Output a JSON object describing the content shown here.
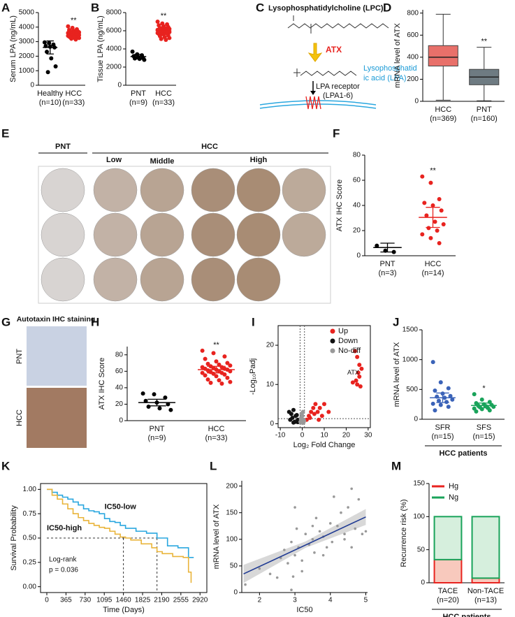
{
  "chart_data": [
    {
      "panel": "A",
      "type": "dot",
      "ylabel": "Serum LPA (ng/mL)",
      "ylim": [
        0,
        5000
      ],
      "yticks": [
        0,
        1000,
        2000,
        3000,
        4000,
        5000
      ],
      "series": [
        {
          "name": "Healthy",
          "note": "(n=10)",
          "color": "#000000",
          "mean": 2600,
          "error": 450,
          "values": [
            2950,
            2900,
            2800,
            2700,
            2650,
            2600,
            2300,
            1850,
            1300,
            900
          ]
        },
        {
          "name": "HCC",
          "note": "(n=33)",
          "color": "#e8231f",
          "mean": 3550,
          "error": 150,
          "significance": "**",
          "values": [
            4050,
            3950,
            3850,
            3800,
            3750,
            3700,
            3700,
            3650,
            3650,
            3600,
            3600,
            3600,
            3550,
            3550,
            3550,
            3500,
            3500,
            3500,
            3500,
            3450,
            3450,
            3450,
            3400,
            3400,
            3400,
            3350,
            3350,
            3300,
            3300,
            3250,
            3250,
            3200,
            3150
          ]
        }
      ]
    },
    {
      "panel": "B",
      "type": "dot",
      "ylabel": "Tissue LPA (ng/mL)",
      "ylim": [
        0,
        8000
      ],
      "yticks": [
        0,
        2000,
        4000,
        6000,
        8000
      ],
      "series": [
        {
          "name": "PNT",
          "note": "(n=9)",
          "color": "#000000",
          "mean": 3150,
          "error": 250,
          "values": [
            3700,
            3400,
            3300,
            3200,
            3100,
            3000,
            2950,
            2900,
            2800
          ]
        },
        {
          "name": "HCC",
          "note": "(n=33)",
          "color": "#e8231f",
          "mean": 6000,
          "error": 400,
          "significance": "**",
          "values": [
            7000,
            6800,
            6700,
            6600,
            6500,
            6400,
            6300,
            6300,
            6200,
            6200,
            6100,
            6100,
            6050,
            6000,
            6000,
            6000,
            5950,
            5900,
            5900,
            5850,
            5800,
            5800,
            5750,
            5700,
            5700,
            5650,
            5600,
            5500,
            5400,
            5300,
            5200,
            5100,
            5000
          ]
        }
      ]
    },
    {
      "panel": "D",
      "type": "box",
      "ylabel": "mRNA level of ATX",
      "ylim": [
        0,
        830
      ],
      "yticks": [
        0,
        200,
        400,
        600,
        800
      ],
      "series": [
        {
          "name": "HCC",
          "note": "(n=369)",
          "color": "#e8706a",
          "whisker_low": 10,
          "q1": 320,
          "median": 400,
          "q3": 505,
          "whisker_high": 790
        },
        {
          "name": "PNT",
          "note": "(n=160)",
          "color": "#6e7b82",
          "whisker_low": 5,
          "q1": 150,
          "median": 220,
          "q3": 290,
          "whisker_high": 490,
          "significance": "**"
        }
      ]
    },
    {
      "panel": "F",
      "type": "dot",
      "ylabel": "ATX IHC Score",
      "ylim": [
        0,
        80
      ],
      "yticks": [
        0,
        20,
        40,
        60,
        80
      ],
      "series": [
        {
          "name": "PNT",
          "note": "(n=3)",
          "color": "#000000",
          "mean": 6.5,
          "error": 3.5,
          "values": [
            8,
            4,
            3
          ]
        },
        {
          "name": "HCC",
          "note": "(n=14)",
          "color": "#e8231f",
          "mean": 30.5,
          "error": 8,
          "significance": "**",
          "values": [
            63,
            58,
            45,
            42,
            40,
            36,
            32,
            27,
            25,
            22,
            20,
            17,
            14,
            10
          ]
        }
      ]
    },
    {
      "panel": "H",
      "type": "dot",
      "ylabel": "ATX IHC Score",
      "ylim": [
        0,
        90
      ],
      "yticks": [
        0,
        20,
        40,
        60,
        80
      ],
      "series": [
        {
          "name": "PNT",
          "note": "(n=9)",
          "color": "#000000",
          "mean": 22,
          "error": 4,
          "values": [
            33,
            32,
            28,
            24,
            22,
            20,
            17,
            15,
            13
          ]
        },
        {
          "name": "HCC",
          "note": "(n=33)",
          "color": "#e8231f",
          "mean": 62,
          "error": 4,
          "significance": "**",
          "values": [
            85,
            82,
            78,
            75,
            72,
            70,
            69,
            68,
            67,
            66,
            65,
            65,
            64,
            63,
            63,
            62,
            62,
            61,
            60,
            60,
            59,
            58,
            58,
            57,
            56,
            55,
            54,
            52,
            50,
            49,
            47,
            46,
            45
          ]
        }
      ]
    },
    {
      "panel": "I",
      "type": "volcano",
      "ylabel": "-Log₁₀Padj",
      "xlabel": "Log₂ Fold Change",
      "annotation": "ATX",
      "xlim": [
        -11,
        31
      ],
      "xticks": [
        -10,
        0,
        10,
        20,
        30
      ],
      "ylim": [
        -1,
        25
      ],
      "yticks": [
        0,
        10,
        20
      ],
      "thresholds": {
        "x": [
          -1,
          1
        ],
        "y": 1.3
      },
      "series": [
        {
          "name": "Up",
          "color": "#e8231f",
          "x": [
            24,
            25,
            26,
            27,
            25.5,
            26,
            24.5,
            23,
            25,
            26.5,
            2,
            3,
            4,
            5,
            6,
            7,
            8,
            9,
            10,
            12,
            3.5,
            5.5,
            7.5
          ],
          "y": [
            18.5,
            17,
            15,
            14,
            13,
            12,
            11,
            10.5,
            10,
            9.5,
            1,
            2,
            3,
            4,
            5,
            3,
            4,
            2,
            5,
            3,
            1.5,
            2.5,
            1
          ]
        },
        {
          "name": "Down",
          "color": "#111111",
          "x": [
            -6,
            -5,
            -4,
            -3,
            -2,
            -5.5,
            -4.5,
            -3.5,
            -2.5,
            -1.5,
            -4,
            -3,
            -2
          ],
          "y": [
            3,
            2.5,
            3.5,
            2,
            1,
            1,
            1.5,
            0.5,
            2.2,
            0.8,
            0.3,
            0.5,
            0.4
          ]
        },
        {
          "name": "No-diff",
          "color": "#999999",
          "x": [
            -0.8,
            -0.5,
            0,
            0.5,
            0.8,
            -0.3,
            0.3,
            0.6,
            -0.6,
            0.1
          ],
          "y": [
            0.5,
            1.5,
            2,
            1,
            0.8,
            2.5,
            3,
            0.4,
            1.2,
            0.2
          ]
        }
      ]
    },
    {
      "panel": "J",
      "type": "dot",
      "ylabel": "mRNA level of ATX",
      "xlabel": "HCC patients",
      "ylim": [
        0,
        1500
      ],
      "yticks": [
        0,
        500,
        1000,
        1500
      ],
      "series": [
        {
          "name": "SFR",
          "note": "(n=15)",
          "color": "#3b63b8",
          "mean": 360,
          "error": 80,
          "values": [
            960,
            620,
            520,
            480,
            430,
            390,
            380,
            360,
            330,
            310,
            290,
            260,
            240,
            210,
            150
          ]
        },
        {
          "name": "SFS",
          "note": "(n=15)",
          "color": "#19a35a",
          "mean": 232,
          "error": 40,
          "significance": "*",
          "values": [
            420,
            330,
            290,
            270,
            250,
            240,
            230,
            220,
            210,
            200,
            190,
            180,
            170,
            150,
            130
          ]
        }
      ]
    },
    {
      "panel": "K",
      "type": "survival",
      "ylabel": "Survival Probability",
      "xlabel": "Time (Days)",
      "xlim": [
        -120,
        3050
      ],
      "xticks": [
        0,
        365,
        730,
        1095,
        1460,
        1825,
        2190,
        2555,
        2920
      ],
      "ylim": [
        -0.06,
        1.06
      ],
      "yticks": [
        {
          "value": 0,
          "label": "0.00"
        },
        {
          "value": 0.25,
          "label": "0.25"
        },
        {
          "value": 0.5,
          "label": "0.50"
        },
        {
          "value": 0.75,
          "label": "0.75"
        },
        {
          "value": 1,
          "label": "1.00"
        }
      ],
      "stat_text": [
        "Log-rank",
        "p = 0.036"
      ],
      "reference_x": [
        1460,
        2100
      ],
      "reference_y": 0.5,
      "series": [
        {
          "name": "IC50-low",
          "color": "#2aa7df",
          "x": [
            0,
            100,
            200,
            300,
            400,
            500,
            600,
            700,
            800,
            900,
            1000,
            1100,
            1200,
            1300,
            1400,
            1500,
            1700,
            1900,
            2100,
            2300,
            2500,
            2700,
            2800
          ],
          "y": [
            1,
            0.97,
            0.94,
            0.92,
            0.9,
            0.87,
            0.84,
            0.8,
            0.78,
            0.77,
            0.75,
            0.7,
            0.67,
            0.66,
            0.63,
            0.6,
            0.57,
            0.55,
            0.5,
            0.42,
            0.4,
            0.3,
            0.3
          ]
        },
        {
          "name": "IC50-high",
          "color": "#e9b43a",
          "x": [
            0,
            100,
            200,
            300,
            400,
            500,
            600,
            700,
            800,
            900,
            1000,
            1100,
            1200,
            1300,
            1400,
            1500,
            1600,
            1800,
            2000,
            2100,
            2200,
            2400,
            2600,
            2700,
            2750
          ],
          "y": [
            1,
            0.94,
            0.9,
            0.85,
            0.8,
            0.75,
            0.71,
            0.68,
            0.65,
            0.63,
            0.61,
            0.6,
            0.57,
            0.54,
            0.51,
            0.5,
            0.48,
            0.44,
            0.4,
            0.36,
            0.34,
            0.31,
            0.3,
            0.15,
            0.04
          ]
        }
      ]
    },
    {
      "panel": "L",
      "type": "scatter",
      "ylabel": "mRNA level of ATX",
      "xlabel": "IC50",
      "color": "#999999",
      "xlim": [
        1.5,
        5.05
      ],
      "xticks": [
        2,
        3,
        4,
        5
      ],
      "ylim": [
        0,
        210
      ],
      "yticks": [
        0,
        50,
        100,
        150,
        200
      ],
      "x": [
        1.6,
        2.0,
        2.3,
        2.5,
        2.6,
        2.7,
        2.8,
        2.9,
        2.95,
        3.0,
        3.05,
        3.1,
        3.2,
        3.3,
        3.4,
        3.5,
        3.55,
        3.6,
        3.7,
        3.8,
        3.9,
        4.0,
        4.05,
        4.1,
        4.2,
        4.3,
        4.4,
        4.5,
        4.6,
        4.7,
        4.8,
        4.9,
        5.0,
        3.0,
        3.2,
        2.9,
        4.4,
        4.6,
        3.8,
        3.5
      ],
      "y": [
        15,
        45,
        35,
        28,
        65,
        80,
        55,
        95,
        30,
        70,
        120,
        85,
        60,
        110,
        90,
        100,
        75,
        140,
        115,
        105,
        85,
        130,
        95,
        180,
        125,
        150,
        100,
        160,
        85,
        120,
        175,
        110,
        115,
        160,
        40,
        5,
        110,
        195,
        70,
        125
      ],
      "fit": {
        "x": [
          1.55,
          5
        ],
        "y": [
          35,
          142
        ]
      },
      "fit_band": {
        "x": [
          1.55,
          3.3,
          5
        ],
        "lower": [
          18,
          84,
          127
        ],
        "upper": [
          52,
          96,
          157
        ]
      }
    },
    {
      "panel": "M",
      "type": "stacked_bar",
      "ylabel": "Recurrence risk (%)",
      "xlabel": "HCC patients",
      "ylim": [
        0,
        150
      ],
      "yticks": [
        0,
        50,
        100,
        150
      ],
      "categories": [
        "TACE",
        "Non-TACE"
      ],
      "category_notes": [
        "(n=20)",
        "(n=13)"
      ],
      "series": [
        {
          "name": "Hg",
          "color": "#e8231f",
          "fill": "#f8c9bd",
          "values": [
            35,
            7
          ]
        },
        {
          "name": "Ng",
          "color": "#19a35a",
          "fill": "#d6efdd",
          "values": [
            65,
            93
          ]
        }
      ]
    }
  ],
  "diagram": {
    "panel": "C",
    "substrate": "Lysophosphatidylcholine (LPC)",
    "enzyme": "ATX",
    "product": [
      "Lysophosphatid",
      "ic acid (LPA)"
    ],
    "receptor": [
      "LPA receptor",
      "(LPA1-6)"
    ]
  },
  "ihc_panel": {
    "panel": "E",
    "normal": "PNT",
    "tumor": "HCC",
    "grades": [
      "Low",
      "Middle",
      "High"
    ]
  },
  "staining": {
    "panel": "G",
    "title": "Autotaxin IHC staining",
    "rows": [
      "PNT",
      "HCC"
    ]
  }
}
